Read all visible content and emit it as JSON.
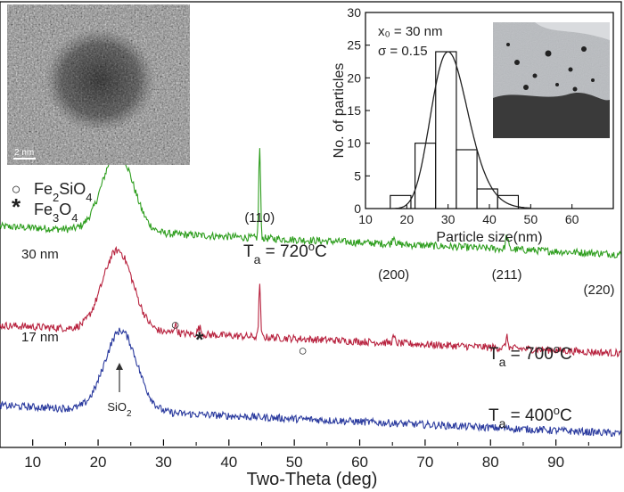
{
  "chart_data": {
    "main": {
      "type": "line",
      "xlabel": "Two-Theta (deg)",
      "xlim": [
        5,
        100
      ],
      "x_ticks": [
        10,
        20,
        30,
        40,
        50,
        60,
        70,
        80,
        90
      ],
      "ylabel": "",
      "series": [
        {
          "name": "30 nm",
          "anneal_label": "Ta = 720°C",
          "color": "#2e9e1e",
          "baseline_offset": 0.72,
          "peaks": [
            {
              "x": 23,
              "height": 0.3,
              "width": 5.5
            },
            {
              "x": 44.7,
              "height": 0.34,
              "width": 0.32
            },
            {
              "x": 65.2,
              "height": 0.03,
              "width": 0.5
            },
            {
              "x": 82.5,
              "height": 0.05,
              "width": 0.45
            }
          ]
        },
        {
          "name": "17 nm",
          "anneal_label": "Ta = 700°C",
          "color": "#b8233f",
          "baseline_offset": 0.35,
          "peaks": [
            {
              "x": 23,
              "height": 0.3,
              "width": 5.5
            },
            {
              "x": 31.8,
              "height": 0.03,
              "width": 0.6
            },
            {
              "x": 35.5,
              "height": 0.025,
              "width": 0.6
            },
            {
              "x": 44.7,
              "height": 0.19,
              "width": 0.32
            },
            {
              "x": 65.2,
              "height": 0.02,
              "width": 0.5
            },
            {
              "x": 82.5,
              "height": 0.04,
              "width": 0.45
            }
          ]
        },
        {
          "name": "",
          "anneal_label": "Ta = 400°C",
          "color": "#2a3a9e",
          "baseline_offset": 0.05,
          "peaks": [
            {
              "x": 23.5,
              "height": 0.3,
              "width": 5.8
            }
          ]
        }
      ],
      "peak_labels": [
        {
          "text": "(110)",
          "x": 44.7
        },
        {
          "text": "(200)",
          "x": 65.2
        },
        {
          "text": "(211)",
          "x": 82.5
        },
        {
          "text": "(220)",
          "x": 98.5
        }
      ],
      "phase_markers": [
        {
          "symbol": "○",
          "x": 31.8,
          "phase": "Fe2SiO4"
        },
        {
          "symbol": "*",
          "x": 35.5,
          "phase": "Fe3O4"
        },
        {
          "symbol": "○",
          "x": 51.3,
          "phase": "Fe2SiO4"
        }
      ],
      "sio2_annotation": {
        "text": "SiO2",
        "x": 23.5
      },
      "legend": [
        {
          "symbol": "○",
          "base": "Fe",
          "sub1": "2",
          "mid": "SiO",
          "sub2": "4"
        },
        {
          "symbol": "*",
          "base": "Fe",
          "sub1": "3",
          "mid": "O",
          "sub2": "4"
        }
      ]
    },
    "inset": {
      "type": "bar",
      "xlabel": "Particle size(nm)",
      "ylabel": "No. of  particles",
      "xlim": [
        10,
        70
      ],
      "ylim": [
        0,
        30
      ],
      "x_ticks": [
        10,
        20,
        30,
        40,
        50,
        60
      ],
      "y_ticks": [
        0,
        5,
        10,
        15,
        20,
        25,
        30
      ],
      "bin_centers": [
        18.5,
        24.5,
        29.5,
        34.5,
        39.5,
        44.5
      ],
      "bin_width": 5,
      "values": [
        2,
        10,
        24,
        9,
        3,
        2
      ],
      "fit": {
        "type": "lognormal",
        "x0": 30,
        "sigma": 0.15,
        "amplitude": 24
      },
      "annotation_x0": "x₀ = 30 nm",
      "annotation_sigma": "σ = 0.15"
    }
  },
  "tem_image": {
    "scale_bar_label": "2 nm"
  }
}
